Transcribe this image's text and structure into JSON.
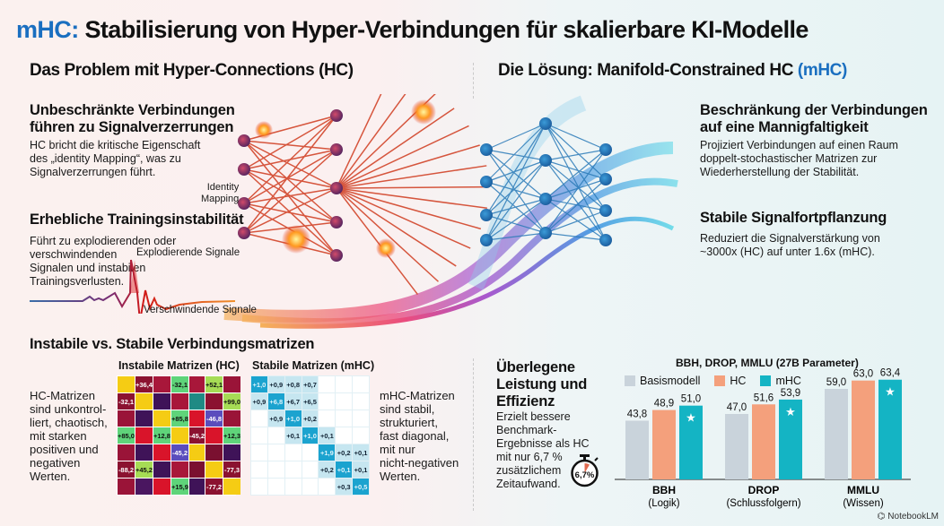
{
  "title": {
    "accent": "mHC:",
    "rest": " Stabilisierung von Hyper-Verbindungen für skalierbare KI-Modelle"
  },
  "left_section": {
    "title": "Das Problem mit Hyper-Connections (HC)",
    "block1": {
      "heading_line1": "Unbeschränkte Verbindungen",
      "heading_line2": "führen zu Signalverzerrungen",
      "text_line1": "HC bricht die kritische Eigenschaft",
      "text_line2": "des „identity Mapping“, was zu",
      "text_line3": "Signalverzerrungen führt."
    },
    "identity_label_line1": "Identity",
    "identity_label_line2": "Mapping",
    "block2": {
      "heading": "Erhebliche Trainingsinstabilität",
      "text_line1": "Führt zu explodierenden oder",
      "text_line2": "verschwindenden",
      "text_line3": "Signalen und instabilen",
      "text_line4": "Trainingsverlusten."
    },
    "exploding_label": "Explodierende Signale",
    "vanishing_label": "Verschwindende Signale"
  },
  "right_section": {
    "title_main": "Die Lösung: Manifold-Constrained HC ",
    "title_accent": "(mHC)",
    "block1": {
      "heading_line1": "Beschränkung der Verbindungen",
      "heading_line2": "auf eine Mannigfaltigkeit",
      "text_line1": "Projiziert Verbindungen auf einen Raum",
      "text_line2": "doppelt-stochastischer Matrizen zur",
      "text_line3": "Wiederherstellung der Stabilität."
    },
    "block2": {
      "heading": "Stabile Signalfortpflanzung",
      "text_line1": "Reduziert die Signalverstärkung von",
      "text_line2": "~3000x (HC) auf unter 1.6x (mHC)."
    }
  },
  "matrices_section": {
    "title": "Instabile vs. Stabile Verbindungsmatrizen",
    "hc_title": "Instabile Matrizen (HC)",
    "mhc_title": "Stabile Matrizen (mHC)",
    "hc_desc": [
      "HC-Matrizen",
      "sind unkontrol-",
      "liert, chaotisch,",
      "mit starken",
      "positiven und",
      "negativen",
      "Werten."
    ],
    "mhc_desc": [
      "mHC-Matrizen",
      "sind stabil,",
      "strukturiert,",
      "fast diagonal,",
      "mit nur",
      "nicht-negativen",
      "Werten."
    ],
    "hc_matrix": [
      [
        {
          "c": "#f5cc14",
          "t": ""
        },
        {
          "c": "#8b1230",
          "t": "+36,4",
          "f": "#fff"
        },
        {
          "c": "#a8173a",
          "t": ""
        },
        {
          "c": "#5fd47a",
          "t": "-32,1",
          "f": "#111"
        },
        {
          "c": "#a8173a",
          "t": ""
        },
        {
          "c": "#a6dc55",
          "t": "+52,1",
          "f": "#111"
        },
        {
          "c": "#9a1438",
          "t": ""
        }
      ],
      [
        {
          "c": "#8b1230",
          "t": "-32,1",
          "f": "#fff"
        },
        {
          "c": "#f5cc14",
          "t": ""
        },
        {
          "c": "#3f1358",
          "t": ""
        },
        {
          "c": "#a8173a",
          "t": ""
        },
        {
          "c": "#1f8a84",
          "t": ""
        },
        {
          "c": "#8b1230",
          "t": ""
        },
        {
          "c": "#a6dc55",
          "t": "+99,0",
          "f": "#111"
        }
      ],
      [
        {
          "c": "#9a1438",
          "t": ""
        },
        {
          "c": "#3f1358",
          "t": ""
        },
        {
          "c": "#f5cc14",
          "t": ""
        },
        {
          "c": "#5fd47a",
          "t": "+85,8",
          "f": "#111"
        },
        {
          "c": "#d9142a",
          "t": ""
        },
        {
          "c": "#5a4dbd",
          "t": "-46,8",
          "f": "#fff"
        },
        {
          "c": "#9a1438",
          "t": ""
        }
      ],
      [
        {
          "c": "#5fd47a",
          "t": "+85,0",
          "f": "#111"
        },
        {
          "c": "#d9142a",
          "t": ""
        },
        {
          "c": "#5fd47a",
          "t": "+12,8",
          "f": "#111"
        },
        {
          "c": "#f5cc14",
          "t": ""
        },
        {
          "c": "#8b1230",
          "t": "-45,2",
          "f": "#fff"
        },
        {
          "c": "#d9142a",
          "t": ""
        },
        {
          "c": "#5fd47a",
          "t": "+12,3",
          "f": "#111"
        }
      ],
      [
        {
          "c": "#9a1438",
          "t": ""
        },
        {
          "c": "#3f1358",
          "t": ""
        },
        {
          "c": "#d9142a",
          "t": ""
        },
        {
          "c": "#5a4dbd",
          "t": "-45,2",
          "f": "#fff"
        },
        {
          "c": "#f5cc14",
          "t": ""
        },
        {
          "c": "#7a1030",
          "t": ""
        },
        {
          "c": "#3f1358",
          "t": ""
        }
      ],
      [
        {
          "c": "#8b1230",
          "t": "-88,2",
          "f": "#fff"
        },
        {
          "c": "#a6dc55",
          "t": "+45,2",
          "f": "#111"
        },
        {
          "c": "#3f1358",
          "t": ""
        },
        {
          "c": "#a8173a",
          "t": ""
        },
        {
          "c": "#7a1030",
          "t": ""
        },
        {
          "c": "#f5cc14",
          "t": ""
        },
        {
          "c": "#8b1230",
          "t": "-77,3",
          "f": "#fff"
        }
      ],
      [
        {
          "c": "#9a1438",
          "t": ""
        },
        {
          "c": "#4a1660",
          "t": ""
        },
        {
          "c": "#d9142a",
          "t": ""
        },
        {
          "c": "#5fd47a",
          "t": "+15,9",
          "f": "#111"
        },
        {
          "c": "#3f1358",
          "t": ""
        },
        {
          "c": "#8b1230",
          "t": "-77,2",
          "f": "#fff"
        },
        {
          "c": "#f5cc14",
          "t": ""
        }
      ]
    ],
    "mhc_matrix": [
      [
        "+1,0",
        "+0,9",
        "+0,8",
        "+0,7",
        "",
        "",
        ""
      ],
      [
        "+0,9",
        "+6,8",
        "+6,7",
        "+6,5",
        "",
        "",
        ""
      ],
      [
        "",
        "+0,9",
        "+1,0",
        "+0,2",
        "",
        "",
        ""
      ],
      [
        "",
        "",
        "+0,1",
        "+1,0",
        "+0,1",
        "",
        ""
      ],
      [
        "",
        "",
        "",
        "",
        "+1,9",
        "+0,2",
        "+0,1"
      ],
      [
        "",
        "",
        "",
        "",
        "+0,2",
        "+0,1",
        "+0,1"
      ],
      [
        "",
        "",
        "",
        "",
        "",
        "+0,3",
        "+0,5"
      ]
    ]
  },
  "performance_section": {
    "heading_line1": "Überlegene",
    "heading_line2": "Leistung und",
    "heading_line3": "Effizienz",
    "text": [
      "Erzielt bessere",
      "Benchmark-",
      "Ergebnisse als HC",
      "mit nur 6,7 %",
      "zusätzlichem",
      "Zeitaufwand."
    ],
    "stopwatch_label": "6,7%"
  },
  "chart_data": {
    "type": "bar",
    "title": "BBH, DROP, MMLU (27B Parameter)",
    "categories": [
      "BBH",
      "DROP",
      "MMLU"
    ],
    "category_sublabels": [
      "(Logik)",
      "(Schlussfolgern)",
      "(Wissen)"
    ],
    "series": [
      {
        "name": "Basismodell",
        "color": "#c9d3db",
        "values": [
          43.8,
          47.0,
          59.0
        ],
        "labels": [
          "43,8",
          "47,0",
          "59,0"
        ]
      },
      {
        "name": "HC",
        "color": "#f4a07c",
        "values": [
          48.9,
          51.6,
          63.0
        ],
        "labels": [
          "48,9",
          "51,6",
          "63,0"
        ]
      },
      {
        "name": "mHC",
        "color": "#14b4c4",
        "values": [
          51.0,
          53.9,
          63.4
        ],
        "labels": [
          "51,0",
          "53,9",
          "63,4"
        ]
      }
    ],
    "highlight_series": "mHC",
    "legend": "top",
    "ylim": [
      20,
      65
    ],
    "grid": false
  },
  "colors": {
    "accent": "#1a6fc0",
    "hc": "#f4a07c",
    "mhc": "#14b4c4",
    "base": "#c9d3db"
  },
  "footer": {
    "brand": "NotebookLM"
  }
}
